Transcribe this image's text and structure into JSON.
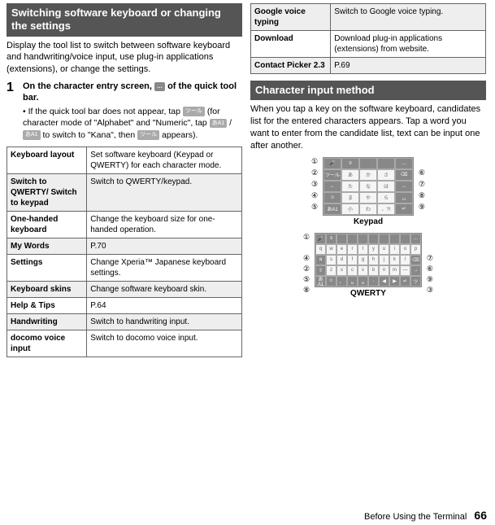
{
  "left": {
    "header": "Switching software keyboard or changing the settings",
    "intro": "Display the tool list to switch between software keyboard and handwriting/voice input, use plug-in applications (extensions), or change the settings.",
    "step_num": "1",
    "step_title_a": "On the character entry screen, ",
    "step_title_b": " of the quick tool bar.",
    "icon_dots": "…",
    "sub_a": "If the quick tool bar does not appear, tap ",
    "sub_b": " (for character mode of \"Alphabet\" and \"Numeric\", tap ",
    "sub_c": " / ",
    "sub_d": " to switch to \"Kana\", then ",
    "sub_e": " appears).",
    "icon1": "ツール",
    "icon2": "あA1",
    "icon3": "あA1",
    "icon4": "ツール",
    "rows": [
      {
        "l": "Keyboard layout",
        "r": "Set software keyboard (Keypad or QWERTY) for each character mode.",
        "shade": false
      },
      {
        "l": "Switch to QWERTY/ Switch to keypad",
        "r": "Switch to QWERTY/keypad.",
        "shade": true
      },
      {
        "l": "One-handed keyboard",
        "r": "Change the keyboard size for one-handed operation.",
        "shade": false
      },
      {
        "l": "My Words",
        "r": "P.70",
        "shade": true
      },
      {
        "l": "Settings",
        "r": "Change Xperia™ Japanese keyboard settings.",
        "shade": false
      },
      {
        "l": "Keyboard skins",
        "r": "Change software keyboard skin.",
        "shade": true
      },
      {
        "l": "Help & Tips",
        "r": "P.64",
        "shade": false
      },
      {
        "l": "Handwriting",
        "r": "Switch to handwriting input.",
        "shade": true
      },
      {
        "l": "docomo voice input",
        "r": "Switch to docomo voice input.",
        "shade": false
      }
    ]
  },
  "right": {
    "rows": [
      {
        "l": "Google voice typing",
        "r": "Switch to Google voice typing.",
        "shade": true
      },
      {
        "l": "Download",
        "r": "Download plug-in applications (extensions) from website.",
        "shade": false
      },
      {
        "l": "Contact Picker 2.3",
        "r": "P.69",
        "shade": true
      }
    ],
    "header": "Character input method",
    "body": "When you tap a key on the software keyboard, candidates list for the entered characters appears. Tap a word you want to enter from the candidate list, text can be input one after another.",
    "keypad_label": "Keypad",
    "qwerty_label": "QWERTY",
    "kp_rows": [
      [
        "🎤",
        "≡",
        " ",
        " ",
        "…"
      ],
      [
        "ツール",
        "あ",
        "か",
        "さ",
        "⌫"
      ],
      [
        "←",
        "た",
        "な",
        "は",
        "→"
      ],
      [
        "☺",
        "ま",
        "や",
        "ら",
        "␣"
      ],
      [
        "あA1",
        "小",
        "わ",
        "、?!",
        "↵"
      ]
    ],
    "qw_rows": [
      [
        "🎤",
        "≡",
        "",
        "",
        "",
        "",
        "",
        "",
        "",
        "…"
      ],
      [
        "q",
        "w",
        "e",
        "r",
        "t",
        "y",
        "u",
        "i",
        "o",
        "p"
      ],
      [
        "a",
        "s",
        "d",
        "f",
        "g",
        "h",
        "j",
        "k",
        "l",
        "⌫"
      ],
      [
        "⇧",
        "z",
        "x",
        "c",
        "v",
        "b",
        "n",
        "m",
        "—",
        "→"
      ],
      [
        "あA1",
        "☺",
        "、",
        "␣",
        "␣",
        ".",
        "◀",
        "▶",
        "↵",
        "ツ"
      ]
    ],
    "circles": [
      "①",
      "②",
      "③",
      "④",
      "⑤",
      "⑥",
      "⑦",
      "⑧",
      "⑨"
    ]
  },
  "footer": {
    "text": "Before Using the Terminal",
    "page": "66"
  }
}
